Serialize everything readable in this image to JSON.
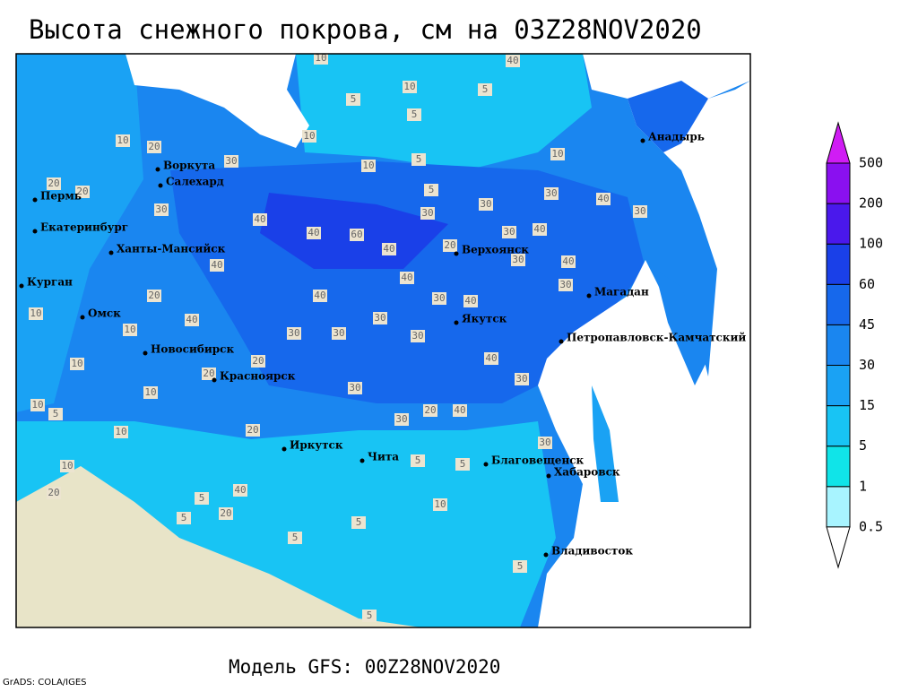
{
  "header": {
    "title": "Высота снежного покрова, см на 03Z28NOV2020"
  },
  "footer": {
    "model": "Модель GFS: 00Z28NOV2020",
    "credit": "GrADS: COLA/IGES"
  },
  "legend": {
    "levels": [
      0.5,
      1,
      5,
      15,
      30,
      45,
      60,
      100,
      200,
      500
    ],
    "colors": [
      "#ffffff",
      "#a8f4ff",
      "#10e4e8",
      "#18c4f4",
      "#1aa2f4",
      "#1a86f0",
      "#1668ec",
      "#1a40e8",
      "#4a18ec",
      "#8a10f0",
      "#d01cf4"
    ]
  },
  "cities": [
    "Воркута",
    "Салехард",
    "Пермь",
    "Екатеринбург",
    "Ханты-Мансийск",
    "Курган",
    "Омск",
    "Новосибирск",
    "Красноярск",
    "Иркутск",
    "Чита",
    "Благовещенск",
    "Хабаровск",
    "Владивосток",
    "Якутск",
    "Верхоянск",
    "Магадан",
    "Петропавловск-Камчатский",
    "Анадырь"
  ],
  "contour_labels": [
    10,
    40,
    10,
    5,
    5,
    5,
    10,
    10,
    20,
    10,
    30,
    10,
    5,
    20,
    20,
    5,
    30,
    30,
    30,
    40,
    30,
    40,
    40,
    60,
    30,
    40,
    20,
    40,
    30,
    30,
    40,
    40,
    40,
    30,
    40,
    30,
    40,
    20,
    10,
    30,
    30,
    30,
    30,
    40,
    10,
    10,
    20,
    40,
    30,
    20,
    30,
    10,
    10,
    5,
    20,
    40,
    30,
    20,
    10,
    30,
    10,
    5,
    5,
    20,
    5,
    20,
    40,
    5,
    5,
    10,
    5,
    5,
    5
  ]
}
